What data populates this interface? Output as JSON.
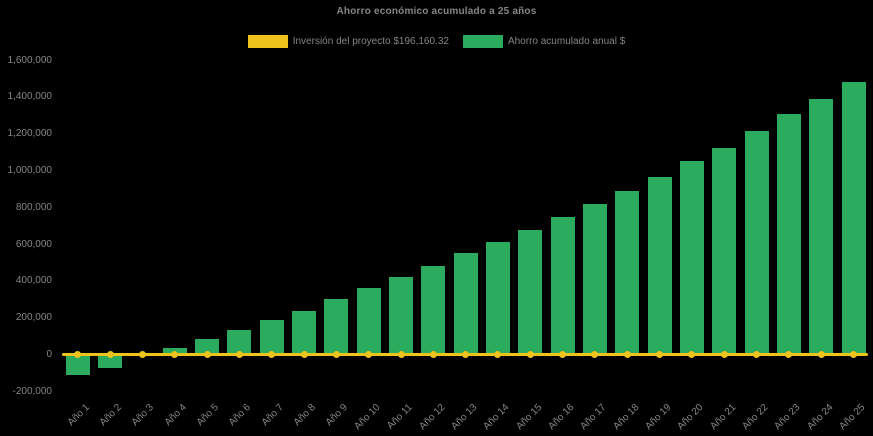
{
  "title": "Ahorro económico acumulado a 25 años",
  "legend": {
    "investment_label": "Inversión del proyecto $196,160.32",
    "savings_label": "Ahorro acumulado anual $"
  },
  "colors": {
    "background": "#000000",
    "bar_green": "#2aab5d",
    "line_yellow": "#eec31b",
    "text_gray": "#858585"
  },
  "chart_data": {
    "type": "bar",
    "title": "Ahorro económico acumulado a 25 años",
    "categories": [
      "Año 1",
      "Año 2",
      "Año 3",
      "Año 4",
      "Año 5",
      "Año 6",
      "Año 7",
      "Año 8",
      "Año 9",
      "Año 10",
      "Año 11",
      "Año 12",
      "Año 13",
      "Año 14",
      "Año 15",
      "Año 16",
      "Año 17",
      "Año 18",
      "Año 19",
      "Año 20",
      "Año 21",
      "Año 22",
      "Año 23",
      "Año 24",
      "Año 25"
    ],
    "series": [
      {
        "name": "Ahorro acumulado anual $",
        "type": "bar",
        "color": "#2aab5d",
        "values": [
          -110000,
          -75000,
          0,
          35000,
          85000,
          135000,
          190000,
          235000,
          300000,
          360000,
          420000,
          480000,
          550000,
          610000,
          675000,
          745000,
          820000,
          890000,
          965000,
          1050000,
          1125000,
          1215000,
          1305000,
          1390000,
          1480000
        ]
      },
      {
        "name": "Inversión del proyecto $196,160.32",
        "type": "line",
        "color": "#eec31b",
        "investment_value": 196160.32,
        "plotted_at": 0,
        "values": [
          0,
          0,
          0,
          0,
          0,
          0,
          0,
          0,
          0,
          0,
          0,
          0,
          0,
          0,
          0,
          0,
          0,
          0,
          0,
          0,
          0,
          0,
          0,
          0,
          0
        ]
      }
    ],
    "xlabel": "",
    "ylabel": "",
    "ylim": [
      -200000,
      1600000
    ],
    "ytick_step": 200000,
    "ytick_labels": [
      "1,600,000",
      "1,400,000",
      "1,200,000",
      "1,000,000",
      "800,000",
      "600,000",
      "400,000",
      "200,000",
      "0",
      "-200,000"
    ],
    "grid": false,
    "legend_position": "top",
    "background": "black"
  }
}
